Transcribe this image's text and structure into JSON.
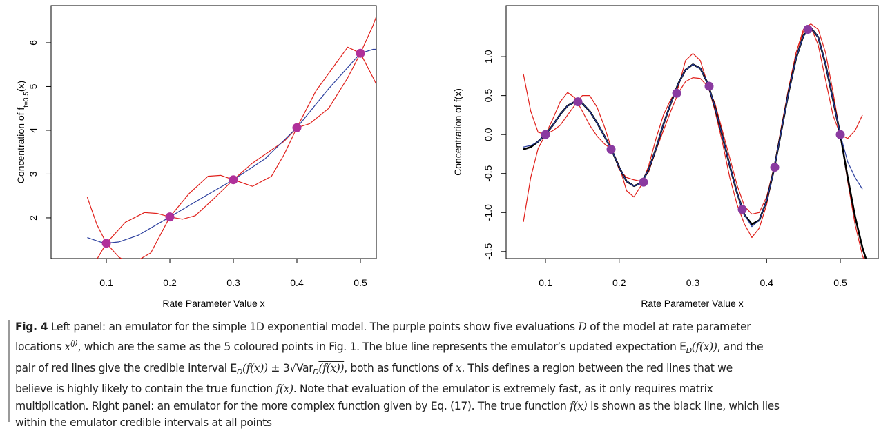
{
  "chart_data": [
    {
      "type": "line",
      "xlabel": "Rate Parameter Value x",
      "ylabel": [
        "Concentration of f",
        "t=3.5",
        "(x)"
      ],
      "xlim": [
        0.013,
        0.525
      ],
      "ylim": [
        1.07,
        6.85
      ],
      "xticks": [
        0.1,
        0.2,
        0.3,
        0.4,
        0.5
      ],
      "yticks": [
        2,
        3,
        4,
        5,
        6
      ],
      "series": [
        {
          "color": "#e0201b",
          "x": [
            0.07,
            0.085,
            0.1,
            0.12,
            0.14,
            0.17,
            0.2,
            0.23,
            0.26,
            0.28,
            0.3,
            0.33,
            0.36,
            0.38,
            0.4,
            0.43,
            0.46,
            0.48,
            0.5,
            0.52,
            0.53
          ],
          "values": [
            2.47,
            1.85,
            1.42,
            1.1,
            0.95,
            1.2,
            2.02,
            2.55,
            2.95,
            2.97,
            2.87,
            2.72,
            2.95,
            3.45,
            4.06,
            4.9,
            5.5,
            5.9,
            5.76,
            5.2,
            4.9
          ]
        },
        {
          "color": "#e0201b",
          "x": [
            0.07,
            0.085,
            0.1,
            0.13,
            0.16,
            0.18,
            0.2,
            0.22,
            0.24,
            0.27,
            0.3,
            0.33,
            0.36,
            0.38,
            0.4,
            0.42,
            0.45,
            0.48,
            0.5,
            0.52,
            0.53
          ],
          "values": [
            1.0,
            1.05,
            1.42,
            1.9,
            2.12,
            2.1,
            2.02,
            1.97,
            2.05,
            2.45,
            2.87,
            3.25,
            3.55,
            3.75,
            4.06,
            4.15,
            4.5,
            5.2,
            5.76,
            6.4,
            6.8
          ]
        },
        {
          "color": "#2b3f9e",
          "x": [
            0.07,
            0.09,
            0.1,
            0.12,
            0.15,
            0.2,
            0.25,
            0.3,
            0.35,
            0.4,
            0.45,
            0.5,
            0.52,
            0.53
          ],
          "values": [
            1.55,
            1.45,
            1.42,
            1.45,
            1.6,
            2.02,
            2.45,
            2.87,
            3.35,
            4.06,
            4.95,
            5.76,
            5.85,
            5.85
          ]
        },
        {
          "style": "points",
          "color": "#b0309a",
          "x": [
            0.1,
            0.2,
            0.3,
            0.4,
            0.5
          ],
          "values": [
            1.42,
            2.02,
            2.87,
            4.06,
            5.76
          ]
        }
      ]
    },
    {
      "type": "line",
      "xlabel": "Rate Parameter Value x",
      "ylabel": [
        "Concentration of f(x)"
      ],
      "xlim": [
        0.0466,
        0.5515
      ],
      "ylim": [
        -1.59,
        1.655
      ],
      "xticks": [
        0.1,
        0.2,
        0.3,
        0.4,
        0.5
      ],
      "yticks": [
        -1.5,
        {
          "value": -1,
          "label": "-1.0"
        },
        -0.5,
        {
          "value": 0,
          "label": "0.0"
        },
        0.5,
        {
          "value": 1,
          "label": "1.0"
        }
      ],
      "x": [
        0.07,
        0.08,
        0.09,
        0.1,
        0.11,
        0.12,
        0.13,
        0.14,
        0.15,
        0.16,
        0.17,
        0.18,
        0.19,
        0.2,
        0.21,
        0.22,
        0.23,
        0.24,
        0.25,
        0.26,
        0.27,
        0.28,
        0.29,
        0.3,
        0.31,
        0.32,
        0.33,
        0.34,
        0.35,
        0.36,
        0.37,
        0.38,
        0.39,
        0.4,
        0.41,
        0.42,
        0.43,
        0.44,
        0.45,
        0.46,
        0.47,
        0.48,
        0.49,
        0.5,
        0.51,
        0.52,
        0.53,
        0.54,
        0.55
      ],
      "series": [
        {
          "color": "#e0201b",
          "width": 1.2,
          "values": [
            0.78,
            0.3,
            0.03,
            0.0,
            0.2,
            0.42,
            0.54,
            0.47,
            0.3,
            0.12,
            -0.02,
            -0.12,
            -0.19,
            -0.4,
            -0.72,
            -0.8,
            -0.65,
            -0.4,
            -0.05,
            0.25,
            0.45,
            0.6,
            0.95,
            1.04,
            0.95,
            0.65,
            0.3,
            -0.1,
            -0.55,
            -0.9,
            -1.15,
            -1.32,
            -1.2,
            -0.9,
            -0.45,
            0.05,
            0.6,
            1.05,
            1.32,
            1.38,
            1.15,
            0.7,
            0.25,
            0.0,
            -0.05,
            0.05,
            0.25,
            null,
            null
          ]
        },
        {
          "color": "#e0201b",
          "width": 1.2,
          "values": [
            -1.12,
            -0.55,
            -0.18,
            0.0,
            0.05,
            0.12,
            0.25,
            0.38,
            0.5,
            0.5,
            0.35,
            0.1,
            -0.19,
            -0.45,
            -0.55,
            -0.58,
            -0.6,
            -0.48,
            -0.2,
            0.05,
            0.3,
            0.53,
            0.68,
            0.73,
            0.72,
            0.62,
            0.4,
            0.05,
            -0.3,
            -0.65,
            -0.92,
            -1.02,
            -1.0,
            -0.8,
            -0.42,
            0.1,
            0.6,
            1.05,
            1.35,
            1.42,
            1.35,
            1.05,
            0.55,
            0.0,
            -0.6,
            -1.15,
            -1.55,
            -1.8,
            null
          ]
        },
        {
          "color": "#000000",
          "width": 2.6,
          "values": [
            -0.19,
            -0.16,
            -0.09,
            0.0,
            0.12,
            0.26,
            0.37,
            0.42,
            0.4,
            0.3,
            0.15,
            -0.02,
            -0.2,
            -0.42,
            -0.6,
            -0.66,
            -0.62,
            -0.45,
            -0.18,
            0.13,
            0.4,
            0.65,
            0.83,
            0.9,
            0.85,
            0.66,
            0.35,
            -0.02,
            -0.4,
            -0.75,
            -1.03,
            -1.15,
            -1.1,
            -0.85,
            -0.45,
            0.05,
            0.55,
            0.98,
            1.27,
            1.37,
            1.25,
            0.9,
            0.45,
            0.0,
            -0.55,
            -1.05,
            -1.45,
            -1.75,
            -1.75
          ]
        },
        {
          "color": "#2b3f9e",
          "width": 1.2,
          "values": [
            -0.16,
            -0.14,
            -0.09,
            0.0,
            0.12,
            0.26,
            0.37,
            0.42,
            0.4,
            0.3,
            0.15,
            -0.02,
            -0.2,
            -0.42,
            -0.6,
            -0.66,
            -0.62,
            -0.45,
            -0.18,
            0.13,
            0.4,
            0.65,
            0.83,
            0.9,
            0.85,
            0.66,
            0.35,
            -0.02,
            -0.4,
            -0.75,
            -1.03,
            -1.18,
            -1.1,
            -0.85,
            -0.45,
            0.05,
            0.55,
            0.98,
            1.27,
            1.37,
            1.25,
            0.9,
            0.45,
            0.0,
            -0.35,
            -0.55,
            -0.7,
            null,
            null
          ]
        },
        {
          "style": "points",
          "color": "#8a3aa0",
          "x": [
            0.1,
            0.144,
            0.189,
            0.233,
            0.278,
            0.322,
            0.367,
            0.411,
            0.456,
            0.5
          ],
          "values": [
            0.0,
            0.42,
            -0.19,
            -0.61,
            0.53,
            0.62,
            -0.96,
            -0.42,
            1.35,
            0.0
          ]
        }
      ]
    }
  ],
  "caption": {
    "lines": [
      [
        {
          "t": "Fig. 4",
          "s": "b"
        },
        {
          "t": " Left panel: an emulator for the simple 1D exponential model. The purple points show five evaluations "
        },
        {
          "t": "D",
          "s": "i"
        },
        {
          "t": " of the model at rate parameter"
        }
      ],
      [
        {
          "t": "locations "
        },
        {
          "t": "x",
          "s": "i"
        },
        {
          "t": "(j)",
          "s": "sup"
        },
        {
          "t": ", which are the same as the 5 coloured points in Fig. 1. The blue line represents the emulator’s updated expectation E"
        },
        {
          "t": "D",
          "s": "sub"
        },
        {
          "t": "(f(x))",
          "s": "i"
        },
        {
          "t": ", and the"
        }
      ],
      [
        {
          "t": "pair of red lines give the credible interval E"
        },
        {
          "t": "D",
          "s": "sub"
        },
        {
          "t": "(f(x))",
          "s": "i"
        },
        {
          "t": " ± 3√Var"
        },
        {
          "t": "D",
          "s": "sub"
        },
        {
          "t": "(f(x))",
          "s": "io"
        },
        {
          "t": ", both as functions of "
        },
        {
          "t": "x",
          "s": "i"
        },
        {
          "t": ". This defines a region between the red lines that we"
        }
      ],
      [
        {
          "t": "believe is highly likely to contain the true function "
        },
        {
          "t": "f(x)",
          "s": "i"
        },
        {
          "t": ". Note that evaluation of the emulator is extremely fast, as it only requires matrix"
        }
      ],
      [
        {
          "t": "multiplication. Right panel: an emulator for the more complex function given by Eq. (17). The true function "
        },
        {
          "t": "f(x)",
          "s": "i"
        },
        {
          "t": " is shown as the black line, which lies"
        }
      ],
      [
        {
          "t": "within the emulator credible intervals at all points"
        }
      ]
    ]
  }
}
